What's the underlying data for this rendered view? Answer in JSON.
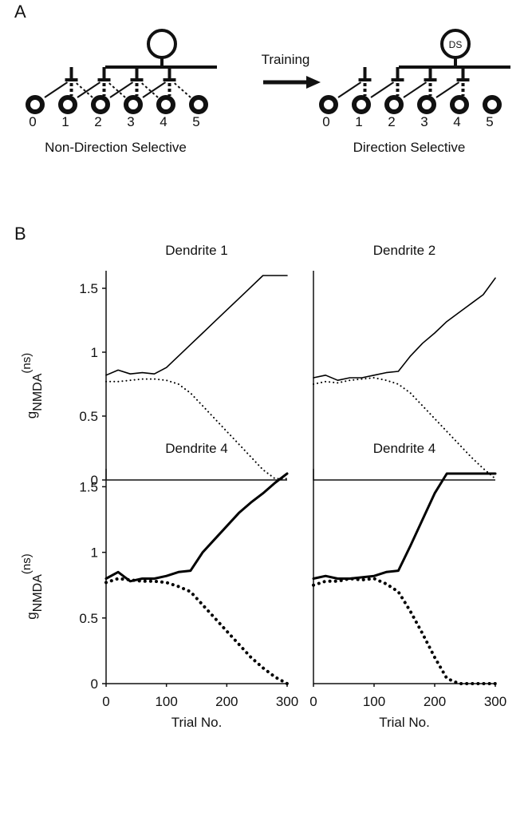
{
  "panel_a": {
    "label": "A",
    "arrow_label": "Training",
    "left": {
      "inputs": [
        "0",
        "1",
        "2",
        "3",
        "4",
        "5"
      ],
      "caption": "Non-Direction Selective"
    },
    "right": {
      "soma_label": "DS",
      "inputs": [
        "0",
        "1",
        "2",
        "3",
        "4",
        "5"
      ],
      "caption": "Direction Selective"
    }
  },
  "panel_b": {
    "label": "B"
  },
  "chart_data": [
    {
      "type": "line",
      "title": "Dendrite 1",
      "ylabel": {
        "main": "g",
        "sub": "NMDA",
        "sup": "(ns)"
      },
      "x": [
        0,
        20,
        40,
        60,
        80,
        100,
        120,
        140,
        160,
        180,
        200,
        220,
        240,
        260,
        280,
        300
      ],
      "series": [
        {
          "color": "#000000",
          "line_style": "solid",
          "values": [
            0.82,
            0.86,
            0.83,
            0.84,
            0.83,
            0.88,
            0.97,
            1.06,
            1.15,
            1.24,
            1.33,
            1.42,
            1.51,
            1.6,
            1.6,
            1.6
          ]
        },
        {
          "color": "#000000",
          "line_style": "dotted",
          "values": [
            0.77,
            0.77,
            0.78,
            0.79,
            0.79,
            0.78,
            0.75,
            0.68,
            0.58,
            0.48,
            0.38,
            0.28,
            0.18,
            0.08,
            0.01,
            0.01
          ]
        }
      ],
      "xlim": [
        0,
        300
      ],
      "ylim": [
        0,
        1.6
      ],
      "yticks": [
        0,
        0.5,
        1,
        1.5
      ]
    },
    {
      "type": "line",
      "title": "Dendrite 2",
      "x": [
        0,
        20,
        40,
        60,
        80,
        100,
        120,
        140,
        160,
        180,
        200,
        220,
        240,
        260,
        280,
        300
      ],
      "series": [
        {
          "color": "#000000",
          "line_style": "solid",
          "values": [
            0.8,
            0.82,
            0.78,
            0.8,
            0.8,
            0.82,
            0.84,
            0.85,
            0.97,
            1.07,
            1.15,
            1.24,
            1.31,
            1.38,
            1.45,
            1.58
          ]
        },
        {
          "color": "#000000",
          "line_style": "dotted",
          "values": [
            0.75,
            0.77,
            0.76,
            0.78,
            0.79,
            0.8,
            0.78,
            0.75,
            0.68,
            0.58,
            0.48,
            0.38,
            0.28,
            0.18,
            0.09,
            0.01
          ]
        }
      ],
      "xlim": [
        0,
        300
      ],
      "ylim": [
        0,
        1.6
      ]
    },
    {
      "type": "line",
      "title": "Dendrite 4",
      "xlabel": "Trial No.",
      "ylabel": {
        "main": "g",
        "sub": "NMDA",
        "sup": "(ns)"
      },
      "x": [
        0,
        20,
        40,
        60,
        80,
        100,
        120,
        140,
        160,
        180,
        200,
        220,
        240,
        260,
        280,
        300
      ],
      "series": [
        {
          "color": "#000000",
          "line_style": "solid",
          "values": [
            0.8,
            0.85,
            0.78,
            0.8,
            0.8,
            0.82,
            0.85,
            0.86,
            1.0,
            1.1,
            1.2,
            1.3,
            1.38,
            1.45,
            1.53,
            1.6
          ]
        },
        {
          "color": "#000000",
          "line_style": "dotted",
          "values": [
            0.77,
            0.8,
            0.79,
            0.78,
            0.78,
            0.77,
            0.74,
            0.7,
            0.6,
            0.5,
            0.4,
            0.3,
            0.2,
            0.12,
            0.05,
            0.0
          ]
        }
      ],
      "xlim": [
        0,
        300
      ],
      "ylim": [
        0,
        1.6
      ],
      "yticks": [
        0,
        0.5,
        1,
        1.5
      ],
      "xticks": [
        0,
        100,
        200,
        300
      ]
    },
    {
      "type": "line",
      "title": "Dendrite 4",
      "xlabel": "Trial No.",
      "x": [
        0,
        20,
        40,
        60,
        80,
        100,
        120,
        140,
        160,
        180,
        200,
        220,
        240,
        260,
        280,
        300
      ],
      "series": [
        {
          "color": "#000000",
          "line_style": "solid",
          "values": [
            0.8,
            0.82,
            0.8,
            0.8,
            0.81,
            0.82,
            0.85,
            0.86,
            1.05,
            1.25,
            1.45,
            1.6,
            1.6,
            1.6,
            1.6,
            1.6
          ]
        },
        {
          "color": "#000000",
          "line_style": "dotted",
          "values": [
            0.75,
            0.78,
            0.78,
            0.8,
            0.79,
            0.8,
            0.76,
            0.7,
            0.55,
            0.38,
            0.2,
            0.04,
            0.0,
            0.0,
            0.0,
            0.0
          ]
        }
      ],
      "xlim": [
        0,
        300
      ],
      "ylim": [
        0,
        1.6
      ],
      "xticks": [
        0,
        100,
        200,
        300
      ]
    }
  ]
}
